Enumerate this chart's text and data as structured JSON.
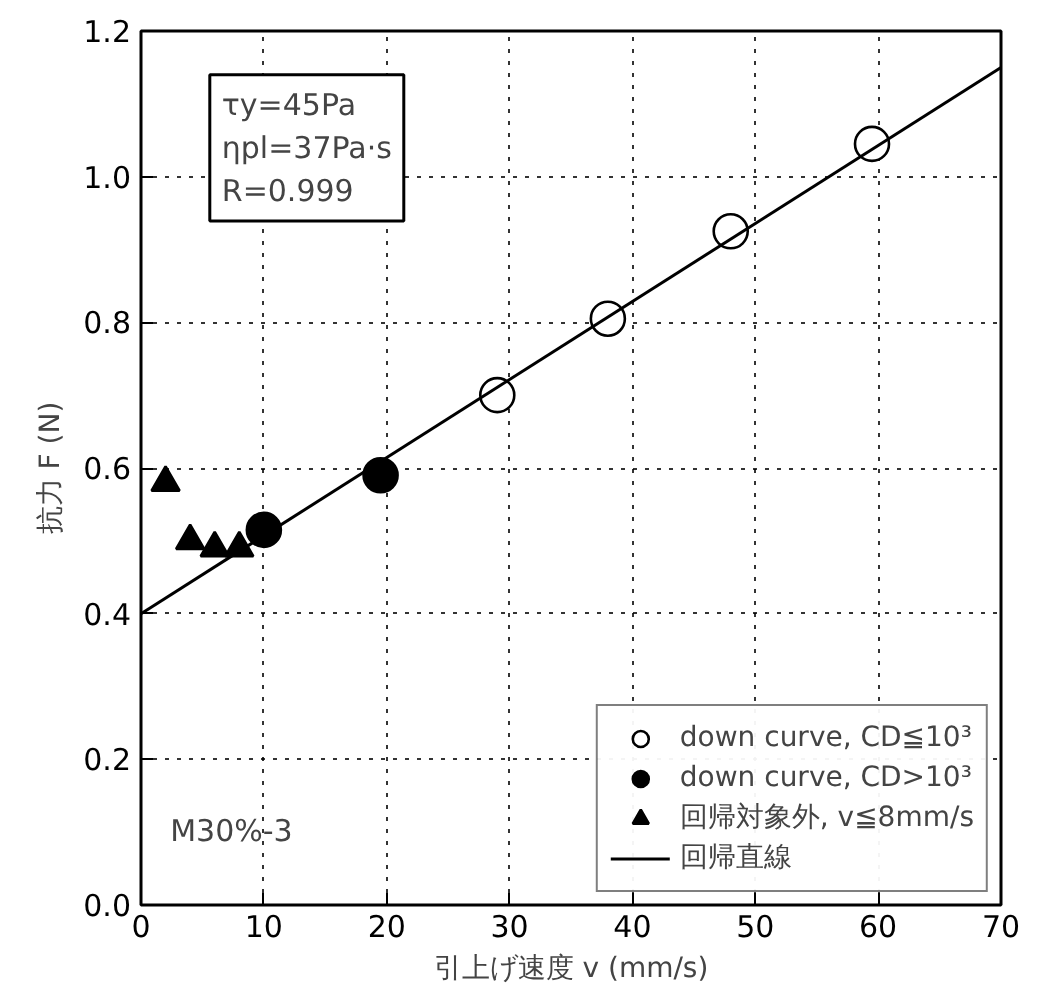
{
  "chart_data": {
    "type": "scatter",
    "xlabel": "引上げ速度 v (mm/s)",
    "ylabel": "抗力 F (N)",
    "xlim": [
      0,
      70
    ],
    "xticks": [
      0,
      10,
      20,
      30,
      40,
      50,
      60,
      70
    ],
    "ylim": [
      0,
      1.2
    ],
    "yticks": [
      {
        "value": 0,
        "label": "0.0"
      },
      {
        "value": 0.2,
        "label": "0.2"
      },
      {
        "value": 0.4,
        "label": "0.4"
      },
      {
        "value": 0.6,
        "label": "0.6"
      },
      {
        "value": 0.8,
        "label": "0.8"
      },
      {
        "value": 1.0,
        "label": "1.0"
      },
      {
        "value": 1.2,
        "label": "1.2"
      }
    ],
    "grid": true,
    "legend": "bottom right",
    "annotations": [
      "τy=45Pa\nηpl=37Pa·s\nR=0.999",
      "M30%-3"
    ],
    "series": [
      {
        "name": "down curve, CD≦10³",
        "marker": "circle",
        "color": "#ffffff",
        "x": [
          29,
          38,
          48,
          59.5
        ],
        "values": [
          0.7,
          0.805,
          0.925,
          1.045
        ]
      },
      {
        "name": "down curve, CD>10³",
        "marker": "circle",
        "color": "#000000",
        "x": [
          10,
          19.5
        ],
        "values": [
          0.515,
          0.59
        ]
      },
      {
        "name": "回帰対象外, v≦8mm/s",
        "marker": "triangle",
        "color": "#000000",
        "x": [
          2,
          4,
          6,
          8
        ],
        "values": [
          0.58,
          0.5,
          0.49,
          0.49
        ]
      },
      {
        "name": "回帰直線",
        "type": "line",
        "color": "#000000",
        "x": [
          0,
          70
        ],
        "values": [
          0.4,
          1.15
        ]
      }
    ]
  }
}
